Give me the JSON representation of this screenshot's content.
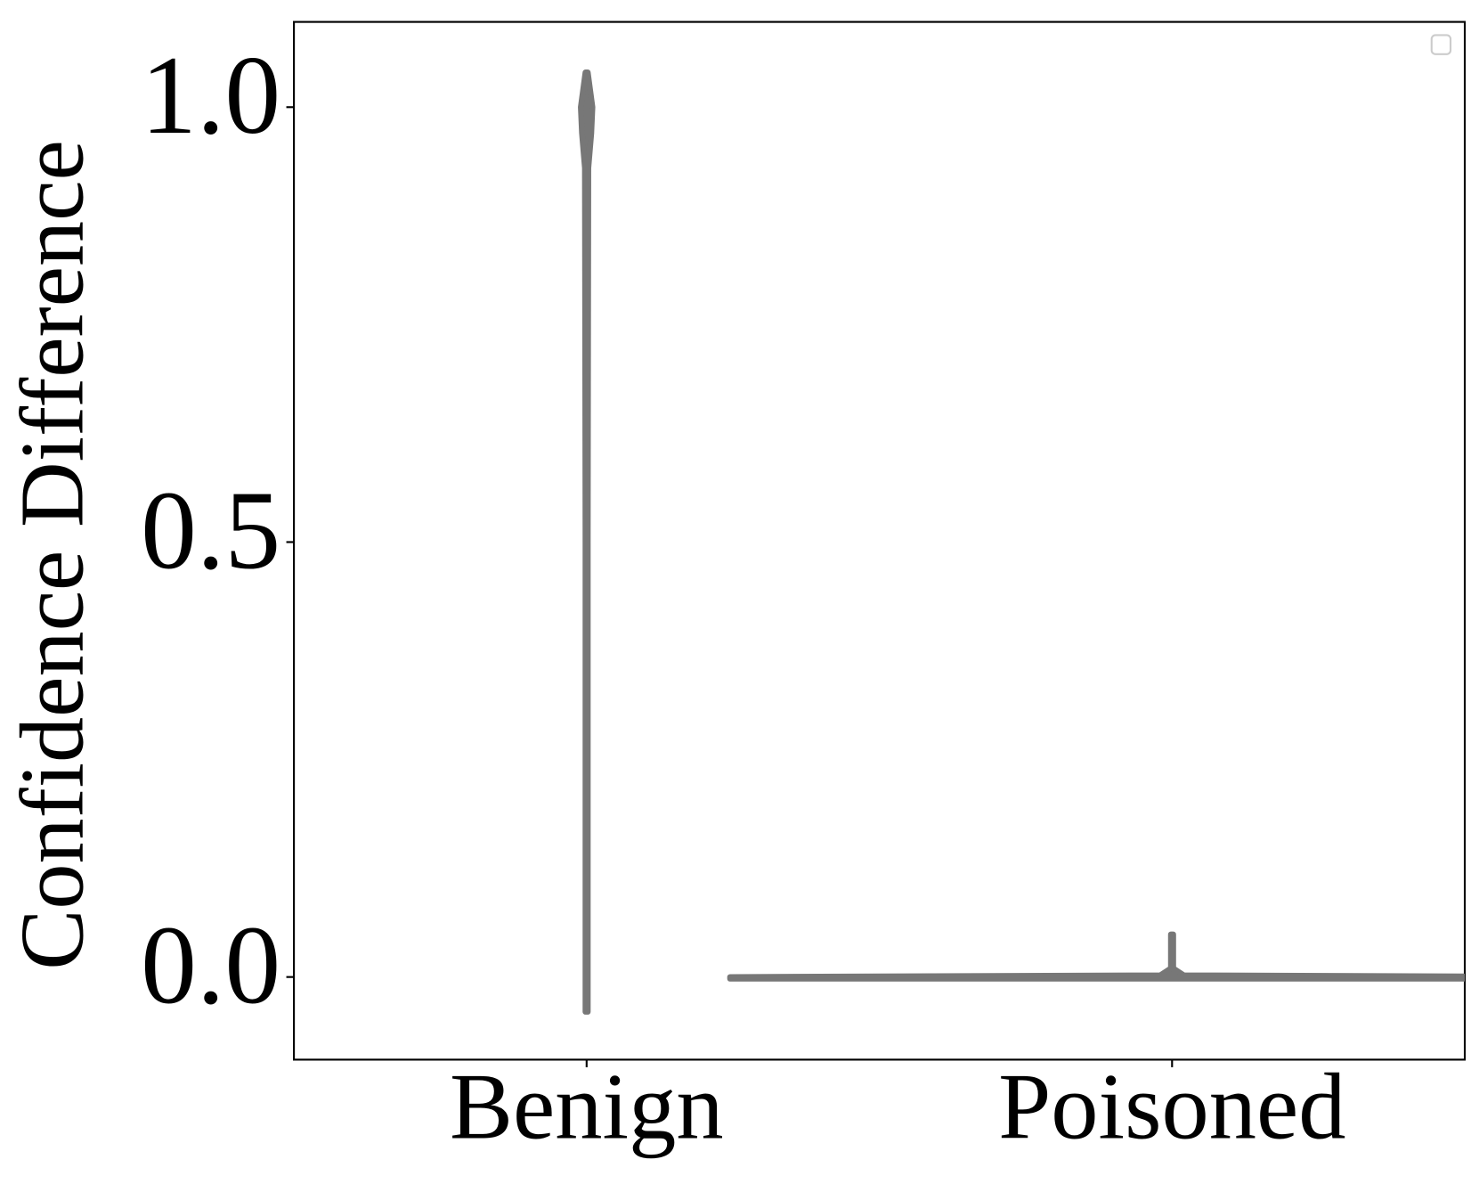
{
  "chart_data": {
    "type": "violin",
    "ylabel": "Confidence Difference",
    "categories": [
      "Benign",
      "Poisoned"
    ],
    "xlim": [
      -0.5,
      1.5
    ],
    "ylim": [
      -0.095,
      1.098
    ],
    "yticks": [
      {
        "value": 0,
        "label": "0.0"
      },
      {
        "value": 0.5,
        "label": "0.5"
      },
      {
        "value": 1,
        "label": "1.0"
      }
    ],
    "color": "#777777",
    "violins": [
      {
        "y": [
          -0.04,
          0,
          0.5,
          0.93,
          0.97,
          1.0,
          1.02,
          1.04
        ],
        "width": [
          0.002,
          0.002,
          0.002,
          0.003,
          0.008,
          0.01,
          0.006,
          0.002
        ]
      },
      {
        "y": [
          -0.002,
          0,
          0.002,
          0.01,
          0.049
        ],
        "width": [
          0.755,
          0.755,
          0.02,
          0.002,
          0.002
        ]
      }
    ],
    "legend": "upper right"
  }
}
